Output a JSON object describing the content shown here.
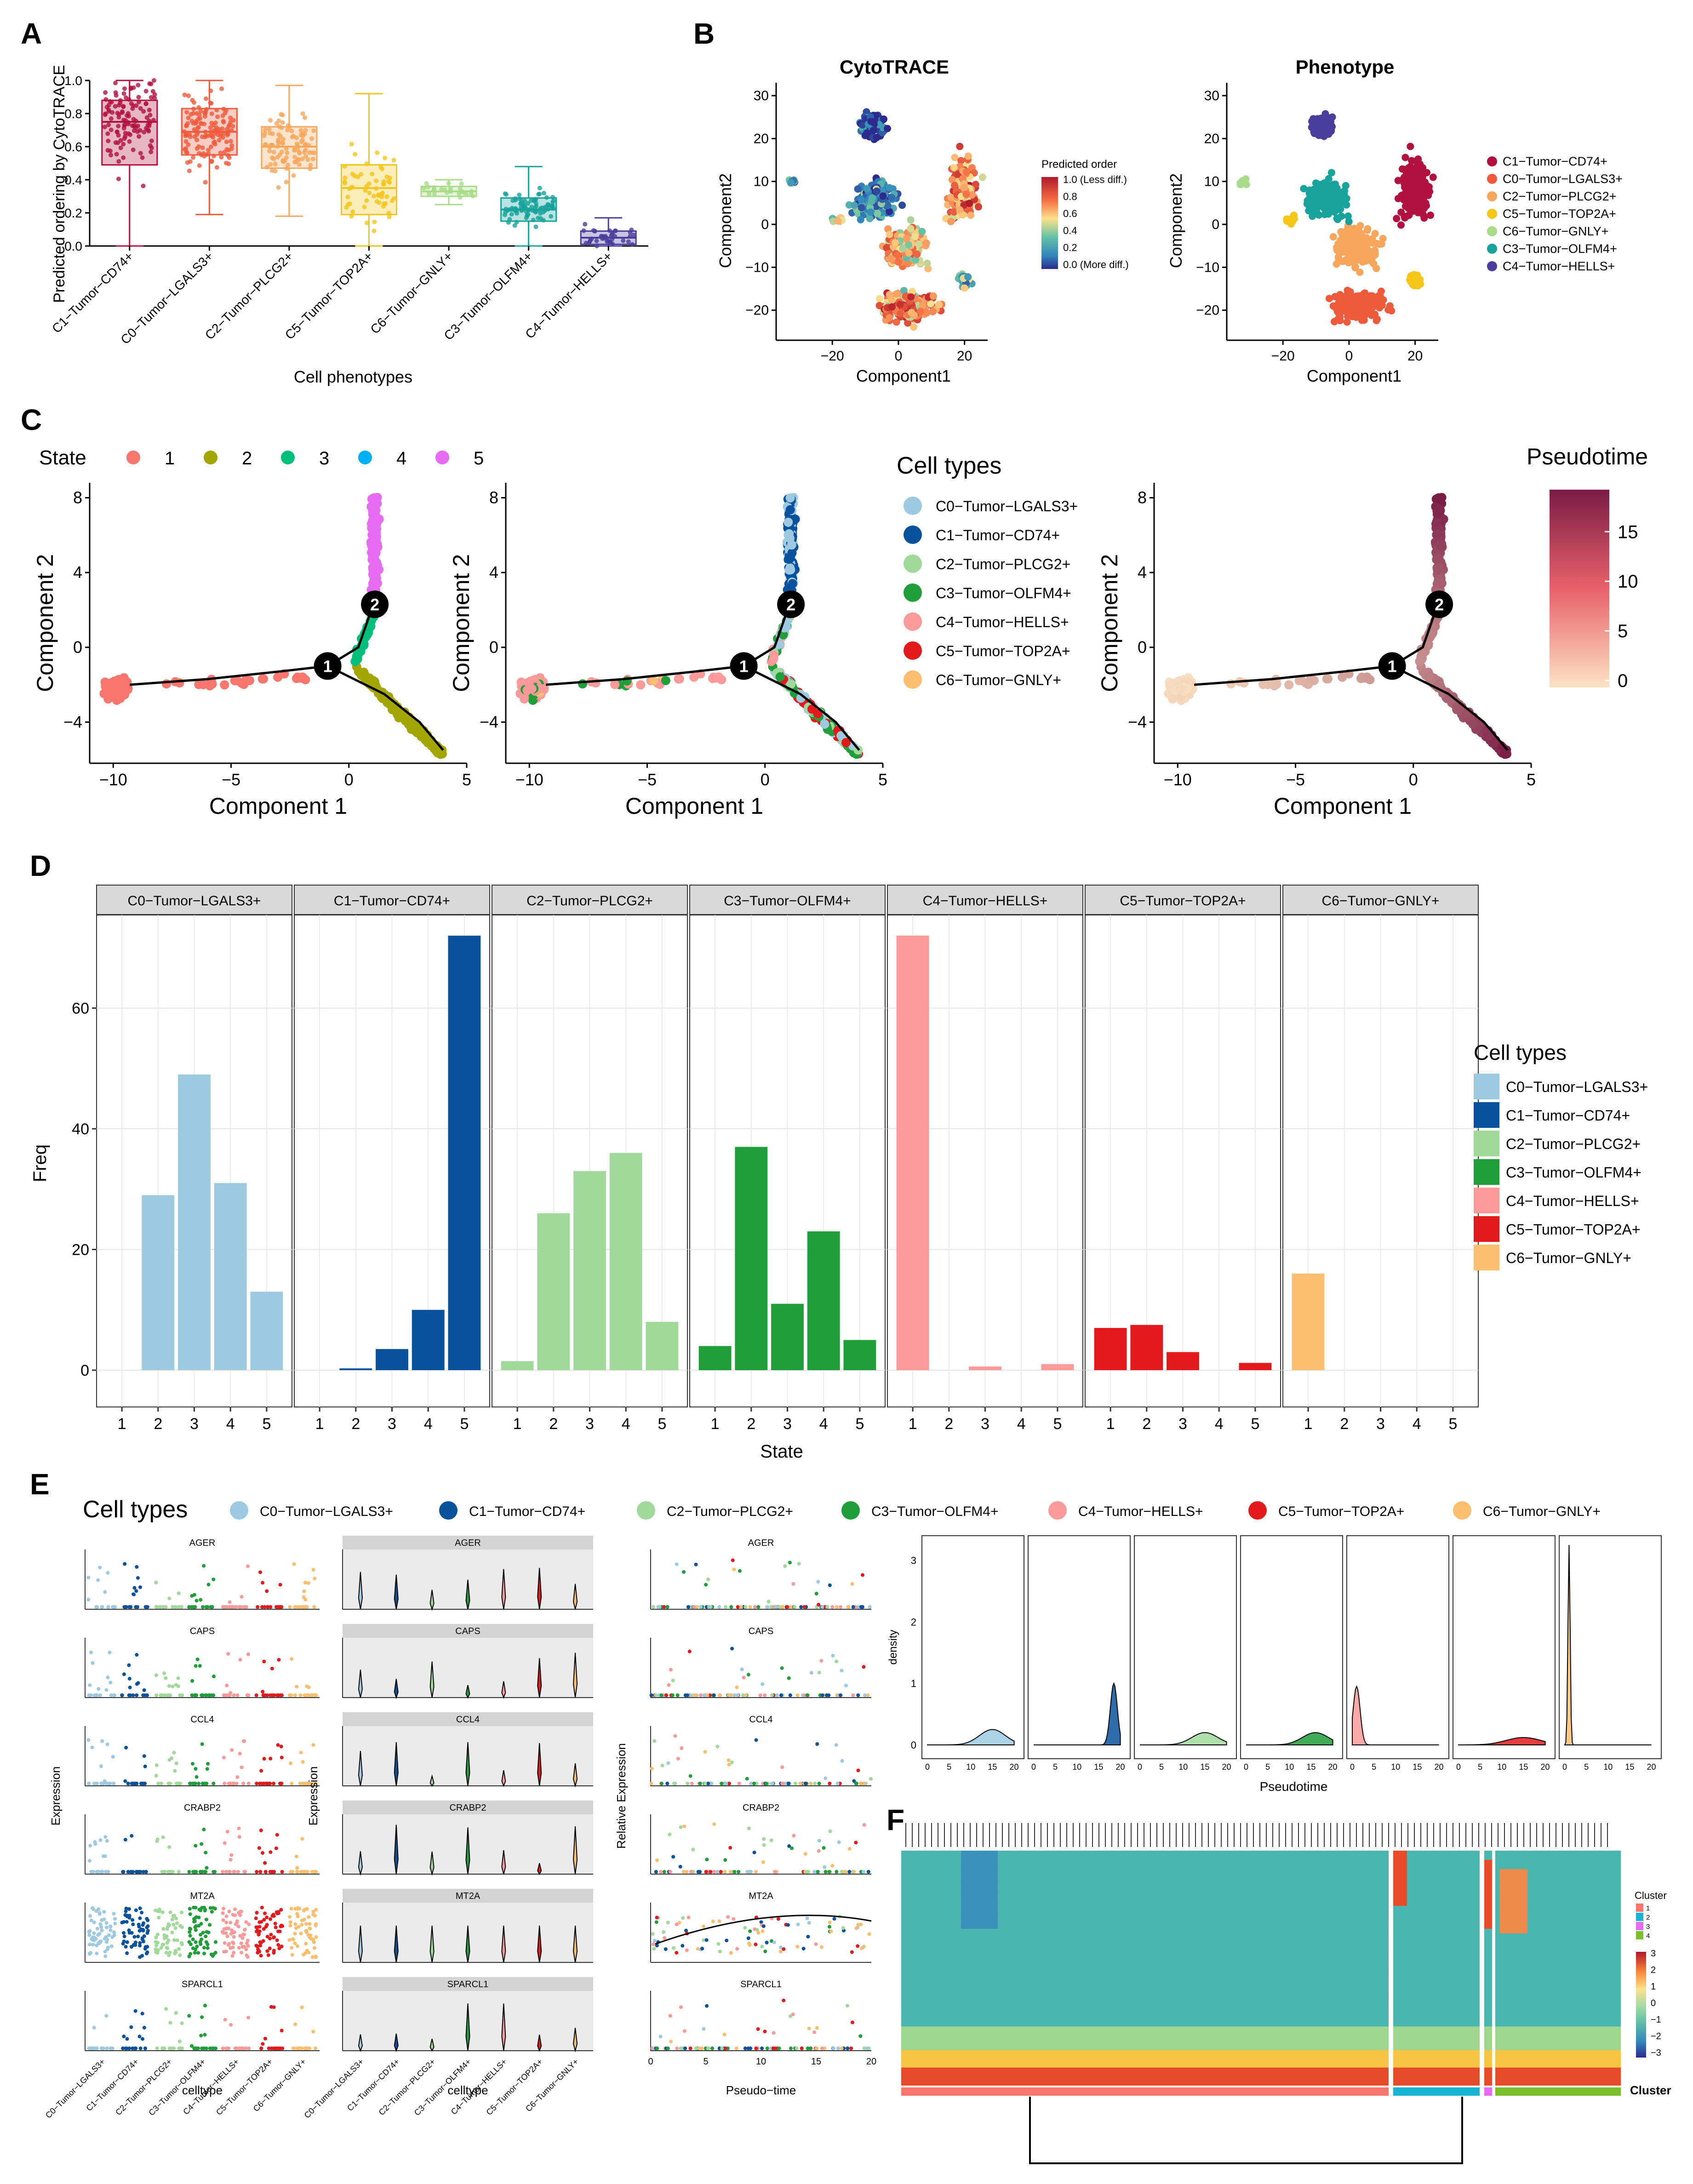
{
  "colors": {
    "C0": "#9ecae1",
    "C1": "#08519c",
    "C2": "#a1d99b",
    "C3": "#1f9e3a",
    "C4": "#fc9a9a",
    "C5": "#e31a1c",
    "C6": "#fdbf6f",
    "state1": "#f8766d",
    "state2": "#a3a500",
    "state3": "#00bf7d",
    "state4": "#00b0f6",
    "state5": "#e76bf3",
    "ph_C1": "#b2103e",
    "ph_C0": "#f05a3c",
    "ph_C2": "#f8a65b",
    "ph_C5": "#f5c518",
    "ph_C6": "#a8dc88",
    "ph_C3": "#17a39b",
    "ph_C4": "#4b3d9b"
  },
  "panel_labels": [
    "A",
    "B",
    "C",
    "D",
    "E",
    "F"
  ],
  "chart_data": [
    {
      "panel": "A",
      "type": "box",
      "ylabel": "Predicted ordering by CytoTRACE",
      "xlabel": "Cell phenotypes",
      "ylim": [
        0,
        1
      ],
      "yticks": [
        "0.0",
        "0.2",
        "0.4",
        "0.6",
        "0.8",
        "1.0"
      ],
      "categories": [
        "C1−Tumor−CD74+",
        "C0−Tumor−LGALS3+",
        "C2−Tumor−PLCG2+",
        "C5−Tumor−TOP2A+",
        "C6−Tumor−GNLY+",
        "C3−Tumor−OLFM4+",
        "C4−Tumor−HELLS+"
      ],
      "boxes": [
        {
          "q1": 0.49,
          "median": 0.75,
          "q3": 0.88,
          "min": 0.0,
          "max": 1.0
        },
        {
          "q1": 0.55,
          "median": 0.69,
          "q3": 0.83,
          "min": 0.19,
          "max": 1.0
        },
        {
          "q1": 0.47,
          "median": 0.6,
          "q3": 0.72,
          "min": 0.18,
          "max": 0.97
        },
        {
          "q1": 0.19,
          "median": 0.35,
          "q3": 0.49,
          "min": 0.0,
          "max": 0.92
        },
        {
          "q1": 0.3,
          "median": 0.33,
          "q3": 0.36,
          "min": 0.25,
          "max": 0.4
        },
        {
          "q1": 0.15,
          "median": 0.22,
          "q3": 0.29,
          "min": 0.0,
          "max": 0.48
        },
        {
          "q1": 0.01,
          "median": 0.05,
          "q3": 0.09,
          "min": 0.0,
          "max": 0.17
        }
      ]
    },
    {
      "panel": "B",
      "type": "scatter",
      "titles": [
        "CytoTRACE",
        "Phenotype"
      ],
      "xlabel": "Component1",
      "ylabel": "Component2",
      "xticks": [
        "−20",
        "0",
        "20"
      ],
      "yticks": [
        "−20",
        "−10",
        "0",
        "10",
        "20",
        "30"
      ],
      "colorbar_title": "Predicted order",
      "colorbar_labels": [
        "1.0 (Less diff.)",
        "0.8",
        "0.6",
        "0.4",
        "0.2",
        "0.0 (More diff.)"
      ],
      "legend": [
        "C1−Tumor−CD74+",
        "C0−Tumor−LGALS3+",
        "C2−Tumor−PLCG2+",
        "C5−Tumor−TOP2A+",
        "C6−Tumor−GNLY+",
        "C3−Tumor−OLFM4+",
        "C4−Tumor−HELLS+"
      ]
    },
    {
      "panel": "C",
      "type": "scatter",
      "xlabel": "Component 1",
      "ylabel": "Component 2",
      "xticks": [
        "−10",
        "−5",
        "0",
        "5"
      ],
      "yticks": [
        "−4",
        "0",
        "4",
        "8"
      ],
      "state_legend_title": "State",
      "states": [
        "1",
        "2",
        "3",
        "4",
        "5"
      ],
      "celltype_legend_title": "Cell types",
      "celltypes": [
        "C0−Tumor−LGALS3+",
        "C1−Tumor−CD74+",
        "C2−Tumor−PLCG2+",
        "C3−Tumor−OLFM4+",
        "C4−Tumor−HELLS+",
        "C5−Tumor−TOP2A+",
        "C6−Tumor−GNLY+"
      ],
      "pseudotime_title": "Pseudotime",
      "pseudotime_ticks": [
        "15",
        "10",
        "5",
        "0"
      ],
      "branch_nodes": [
        "1",
        "2"
      ]
    },
    {
      "panel": "D",
      "type": "bar",
      "xlabel": "State",
      "ylabel": "Freq",
      "ylim": [
        0,
        72
      ],
      "yticks": [
        "0",
        "20",
        "40",
        "60"
      ],
      "categories": [
        "1",
        "2",
        "3",
        "4",
        "5"
      ],
      "legend_title": "Cell types",
      "series": [
        {
          "name": "C0−Tumor−LGALS3+",
          "values": [
            0,
            29,
            49,
            31,
            13
          ]
        },
        {
          "name": "C1−Tumor−CD74+",
          "values": [
            0,
            0.3,
            3.5,
            10,
            72
          ]
        },
        {
          "name": "C2−Tumor−PLCG2+",
          "values": [
            1.5,
            26,
            33,
            36,
            8
          ]
        },
        {
          "name": "C3−Tumor−OLFM4+",
          "values": [
            4,
            37,
            11,
            23,
            5
          ]
        },
        {
          "name": "C4−Tumor−HELLS+",
          "values": [
            72,
            0,
            0.6,
            0,
            1
          ]
        },
        {
          "name": "C5−Tumor−TOP2A+",
          "values": [
            7,
            7.5,
            3,
            0,
            1.2
          ]
        },
        {
          "name": "C6−Tumor−GNLY+",
          "values": [
            16,
            0,
            0,
            0,
            0
          ]
        }
      ]
    },
    {
      "panel": "E",
      "type": "scatter",
      "legend_title": "Cell types",
      "legend": [
        "C0−Tumor−LGALS3+",
        "C1−Tumor−CD74+",
        "C2−Tumor−PLCG2+",
        "C3−Tumor−OLFM4+",
        "C4−Tumor−HELLS+",
        "C5−Tumor−TOP2A+",
        "C6−Tumor−GNLY+"
      ],
      "genes": [
        "AGER",
        "CAPS",
        "CCL4",
        "CRABP2",
        "MT2A",
        "SPARCL1"
      ],
      "ylabels": [
        "Expression",
        "Expression",
        "Relative Expression"
      ],
      "xlabels": [
        "celltype",
        "celltype",
        "Pseudo−time"
      ],
      "categories": [
        "C0−Tumor−LGALS3+",
        "C1−Tumor−CD74+",
        "C2−Tumor−PLCG2+",
        "C3−Tumor−OLFM4+",
        "C4−Tumor−HELLS+",
        "C5−Tumor−TOP2A+",
        "C6−Tumor−GNLY+"
      ],
      "density": {
        "xlabel": "Pseudotime",
        "ylabel": "density",
        "xticks": [
          "0",
          "5",
          "10",
          "15",
          "20"
        ],
        "yticks": [
          "0",
          "1",
          "2",
          "3"
        ],
        "peaks": [
          {
            "center": 15,
            "height": 0.25,
            "width": 3
          },
          {
            "center": 18.5,
            "height": 1.0,
            "width": 0.8
          },
          {
            "center": 15,
            "height": 0.2,
            "width": 3
          },
          {
            "center": 16,
            "height": 0.2,
            "width": 3
          },
          {
            "center": 1,
            "height": 0.95,
            "width": 0.8
          },
          {
            "center": 15,
            "height": 0.12,
            "width": 4
          },
          {
            "center": 1,
            "height": 3.25,
            "width": 0.25
          }
        ]
      }
    },
    {
      "panel": "F",
      "type": "heatmap",
      "legend_title": "Cluster",
      "clusters": [
        "1",
        "2",
        "3",
        "4"
      ],
      "colorbar_ticks": [
        "3",
        "2",
        "1",
        "0",
        "−1",
        "−2",
        "−3"
      ],
      "bottom_label": "Cluster"
    }
  ]
}
